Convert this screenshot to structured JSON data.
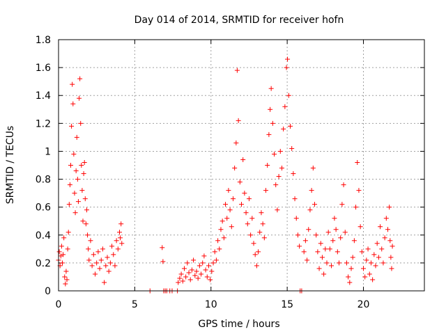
{
  "chart_data": {
    "type": "scatter",
    "title": "Day 014 of 2014, SRMTID for receiver hofn",
    "xlabel": "GPS time / hours",
    "ylabel": "SRMTID / TECUs",
    "xlim": [
      0,
      24
    ],
    "ylim": [
      0,
      1.8
    ],
    "xticks": [
      0,
      5,
      10,
      15,
      20
    ],
    "yticks": [
      0,
      0.2,
      0.4,
      0.6,
      0.8,
      1,
      1.2,
      1.4,
      1.6,
      1.8
    ],
    "xtick_labels": [
      "0",
      "5",
      "10",
      "15",
      "20"
    ],
    "ytick_labels": [
      "0",
      "0.2",
      "0.4",
      "0.6",
      "0.8",
      "1",
      "1.2",
      "1.4",
      "1.6",
      "1.8"
    ],
    "grid": true,
    "marker": "+",
    "color": "#ff0000",
    "series": [
      {
        "name": "SRMTID",
        "points": [
          [
            0.0,
            0.22
          ],
          [
            0.05,
            0.28
          ],
          [
            0.1,
            0.18
          ],
          [
            0.15,
            0.25
          ],
          [
            0.2,
            0.32
          ],
          [
            0.25,
            0.2
          ],
          [
            0.3,
            0.26
          ],
          [
            0.35,
            0.38
          ],
          [
            0.4,
            0.1
          ],
          [
            0.45,
            0.05
          ],
          [
            0.5,
            0.14
          ],
          [
            0.55,
            0.08
          ],
          [
            0.6,
            0.3
          ],
          [
            0.65,
            0.42
          ],
          [
            0.7,
            0.62
          ],
          [
            0.75,
            0.76
          ],
          [
            0.8,
            0.9
          ],
          [
            0.85,
            1.18
          ],
          [
            0.9,
            1.48
          ],
          [
            0.95,
            1.34
          ],
          [
            1.0,
            0.98
          ],
          [
            1.05,
            0.7
          ],
          [
            1.1,
            0.56
          ],
          [
            1.15,
            0.86
          ],
          [
            1.2,
            1.1
          ],
          [
            1.25,
            0.8
          ],
          [
            1.3,
            0.64
          ],
          [
            1.35,
            1.38
          ],
          [
            1.4,
            1.52
          ],
          [
            1.45,
            1.2
          ],
          [
            1.5,
            0.9
          ],
          [
            1.55,
            0.72
          ],
          [
            1.6,
            0.5
          ],
          [
            1.65,
            0.84
          ],
          [
            1.7,
            0.92
          ],
          [
            1.75,
            0.66
          ],
          [
            1.8,
            0.48
          ],
          [
            1.85,
            0.58
          ],
          [
            1.9,
            0.4
          ],
          [
            1.95,
            0.3
          ],
          [
            2.0,
            0.22
          ],
          [
            2.1,
            0.36
          ],
          [
            2.2,
            0.18
          ],
          [
            2.3,
            0.26
          ],
          [
            2.4,
            0.12
          ],
          [
            2.5,
            0.2
          ],
          [
            2.6,
            0.28
          ],
          [
            2.7,
            0.16
          ],
          [
            2.8,
            0.22
          ],
          [
            2.9,
            0.3
          ],
          [
            3.0,
            0.06
          ],
          [
            3.1,
            0.18
          ],
          [
            3.2,
            0.24
          ],
          [
            3.3,
            0.14
          ],
          [
            3.4,
            0.2
          ],
          [
            3.5,
            0.32
          ],
          [
            3.6,
            0.26
          ],
          [
            3.7,
            0.18
          ],
          [
            3.8,
            0.36
          ],
          [
            3.9,
            0.3
          ],
          [
            4.0,
            0.42
          ],
          [
            4.05,
            0.38
          ],
          [
            4.1,
            0.48
          ],
          [
            4.15,
            0.34
          ],
          [
            6.0,
            0.0
          ],
          [
            6.8,
            0.31
          ],
          [
            6.85,
            0.21
          ],
          [
            6.9,
            0.0
          ],
          [
            7.0,
            0.0
          ],
          [
            7.1,
            0.0
          ],
          [
            7.3,
            0.0
          ],
          [
            7.45,
            0.0
          ],
          [
            7.8,
            0.0
          ],
          [
            7.85,
            0.06
          ],
          [
            7.95,
            0.09
          ],
          [
            8.05,
            0.12
          ],
          [
            8.15,
            0.07
          ],
          [
            8.25,
            0.16
          ],
          [
            8.35,
            0.1
          ],
          [
            8.45,
            0.2
          ],
          [
            8.55,
            0.13
          ],
          [
            8.65,
            0.08
          ],
          [
            8.75,
            0.15
          ],
          [
            8.85,
            0.22
          ],
          [
            8.95,
            0.11
          ],
          [
            9.05,
            0.14
          ],
          [
            9.15,
            0.09
          ],
          [
            9.25,
            0.18
          ],
          [
            9.35,
            0.12
          ],
          [
            9.45,
            0.2
          ],
          [
            9.55,
            0.25
          ],
          [
            9.65,
            0.15
          ],
          [
            9.75,
            0.1
          ],
          [
            9.85,
            0.18
          ],
          [
            9.95,
            0.08
          ],
          [
            10.05,
            0.14
          ],
          [
            10.15,
            0.2
          ],
          [
            10.25,
            0.28
          ],
          [
            10.35,
            0.22
          ],
          [
            10.45,
            0.36
          ],
          [
            10.55,
            0.3
          ],
          [
            10.65,
            0.44
          ],
          [
            10.75,
            0.5
          ],
          [
            10.85,
            0.38
          ],
          [
            10.95,
            0.62
          ],
          [
            11.05,
            0.52
          ],
          [
            11.15,
            0.72
          ],
          [
            11.25,
            0.58
          ],
          [
            11.35,
            0.46
          ],
          [
            11.45,
            0.66
          ],
          [
            11.55,
            0.88
          ],
          [
            11.65,
            1.06
          ],
          [
            11.72,
            1.58
          ],
          [
            11.8,
            1.22
          ],
          [
            11.9,
            0.78
          ],
          [
            12.0,
            0.62
          ],
          [
            12.1,
            0.94
          ],
          [
            12.2,
            0.7
          ],
          [
            12.3,
            0.56
          ],
          [
            12.4,
            0.48
          ],
          [
            12.5,
            0.66
          ],
          [
            12.6,
            0.4
          ],
          [
            12.7,
            0.52
          ],
          [
            12.8,
            0.34
          ],
          [
            12.9,
            0.26
          ],
          [
            13.0,
            0.18
          ],
          [
            13.1,
            0.28
          ],
          [
            13.2,
            0.42
          ],
          [
            13.3,
            0.56
          ],
          [
            13.4,
            0.48
          ],
          [
            13.5,
            0.38
          ],
          [
            13.6,
            0.72
          ],
          [
            13.7,
            0.9
          ],
          [
            13.8,
            1.12
          ],
          [
            13.88,
            1.3
          ],
          [
            13.95,
            1.45
          ],
          [
            14.05,
            1.2
          ],
          [
            14.15,
            0.98
          ],
          [
            14.25,
            0.76
          ],
          [
            14.35,
            0.58
          ],
          [
            14.45,
            0.82
          ],
          [
            14.55,
            1.0
          ],
          [
            14.65,
            0.88
          ],
          [
            14.75,
            1.16
          ],
          [
            14.85,
            1.32
          ],
          [
            14.95,
            1.6
          ],
          [
            15.02,
            1.66
          ],
          [
            15.1,
            1.4
          ],
          [
            15.2,
            1.18
          ],
          [
            15.3,
            1.02
          ],
          [
            15.4,
            0.84
          ],
          [
            15.5,
            0.66
          ],
          [
            15.6,
            0.52
          ],
          [
            15.7,
            0.4
          ],
          [
            15.8,
            0.32
          ],
          [
            15.85,
            0.0
          ],
          [
            15.95,
            0.0
          ],
          [
            16.1,
            0.28
          ],
          [
            16.2,
            0.36
          ],
          [
            16.3,
            0.22
          ],
          [
            16.4,
            0.44
          ],
          [
            16.5,
            0.58
          ],
          [
            16.6,
            0.72
          ],
          [
            16.7,
            0.88
          ],
          [
            16.8,
            0.62
          ],
          [
            16.9,
            0.4
          ],
          [
            17.0,
            0.28
          ],
          [
            17.1,
            0.16
          ],
          [
            17.2,
            0.34
          ],
          [
            17.3,
            0.24
          ],
          [
            17.4,
            0.12
          ],
          [
            17.5,
            0.3
          ],
          [
            17.6,
            0.2
          ],
          [
            17.7,
            0.42
          ],
          [
            17.8,
            0.3
          ],
          [
            17.9,
            0.18
          ],
          [
            18.0,
            0.36
          ],
          [
            18.1,
            0.52
          ],
          [
            18.2,
            0.44
          ],
          [
            18.3,
            0.28
          ],
          [
            18.4,
            0.2
          ],
          [
            18.5,
            0.38
          ],
          [
            18.6,
            0.62
          ],
          [
            18.7,
            0.76
          ],
          [
            18.8,
            0.42
          ],
          [
            18.9,
            0.2
          ],
          [
            19.0,
            0.1
          ],
          [
            19.1,
            0.06
          ],
          [
            19.2,
            0.16
          ],
          [
            19.3,
            0.24
          ],
          [
            19.4,
            0.36
          ],
          [
            19.5,
            0.6
          ],
          [
            19.6,
            0.92
          ],
          [
            19.7,
            0.72
          ],
          [
            19.8,
            0.46
          ],
          [
            19.9,
            0.28
          ],
          [
            20.0,
            0.16
          ],
          [
            20.1,
            0.1
          ],
          [
            20.2,
            0.22
          ],
          [
            20.3,
            0.3
          ],
          [
            20.4,
            0.12
          ],
          [
            20.5,
            0.2
          ],
          [
            20.6,
            0.08
          ],
          [
            20.7,
            0.26
          ],
          [
            20.8,
            0.18
          ],
          [
            20.9,
            0.34
          ],
          [
            21.0,
            0.24
          ],
          [
            21.1,
            0.46
          ],
          [
            21.2,
            0.3
          ],
          [
            21.3,
            0.2
          ],
          [
            21.4,
            0.38
          ],
          [
            21.5,
            0.52
          ],
          [
            21.6,
            0.44
          ],
          [
            21.7,
            0.6
          ],
          [
            21.75,
            0.36
          ],
          [
            21.8,
            0.24
          ],
          [
            21.85,
            0.16
          ],
          [
            21.9,
            0.32
          ]
        ]
      }
    ]
  }
}
